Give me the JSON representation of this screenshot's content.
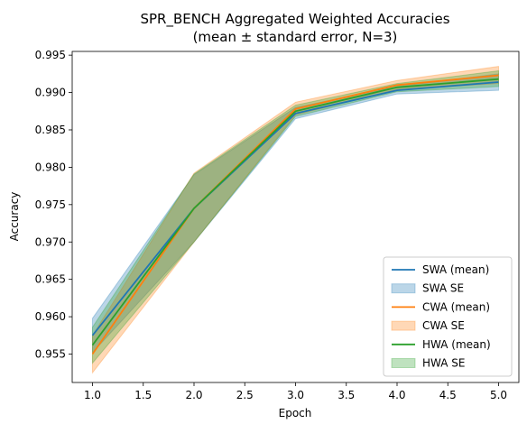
{
  "chart_data": {
    "type": "line",
    "title_line1": "SPR_BENCH Aggregated Weighted Accuracies",
    "title_line2": "(mean ± standard error, N=3)",
    "xlabel": "Epoch",
    "ylabel": "Accuracy",
    "xlim": [
      0.8,
      5.2
    ],
    "ylim": [
      0.9512,
      0.9955
    ],
    "x": [
      1,
      2,
      3,
      4,
      5
    ],
    "xticks": [
      "1.0",
      "1.5",
      "2.0",
      "2.5",
      "3.0",
      "3.5",
      "4.0",
      "4.5",
      "5.0"
    ],
    "xtick_values": [
      1.0,
      1.5,
      2.0,
      2.5,
      3.0,
      3.5,
      4.0,
      4.5,
      5.0
    ],
    "yticks": [
      "0.955",
      "0.960",
      "0.965",
      "0.970",
      "0.975",
      "0.980",
      "0.985",
      "0.990",
      "0.995"
    ],
    "ytick_values": [
      0.955,
      0.96,
      0.965,
      0.97,
      0.975,
      0.98,
      0.985,
      0.99,
      0.995
    ],
    "legend_position": "lower-right",
    "series": [
      {
        "name": "SWA (mean)",
        "band_name": "SWA SE",
        "color": "#1f77b4",
        "mean": [
          0.9575,
          0.9745,
          0.9872,
          0.9903,
          0.9914
        ],
        "lower": [
          0.9552,
          0.97,
          0.9865,
          0.9898,
          0.9903
        ],
        "upper": [
          0.9598,
          0.979,
          0.988,
          0.9908,
          0.9925
        ]
      },
      {
        "name": "CWA (mean)",
        "band_name": "CWA SE",
        "color": "#ff7f0e",
        "mean": [
          0.955,
          0.9745,
          0.9878,
          0.991,
          0.9923
        ],
        "lower": [
          0.9525,
          0.97,
          0.987,
          0.9904,
          0.9912
        ],
        "upper": [
          0.9575,
          0.9792,
          0.9887,
          0.9916,
          0.9935
        ]
      },
      {
        "name": "HWA (mean)",
        "band_name": "HWA SE",
        "color": "#2ca02c",
        "mean": [
          0.9562,
          0.9745,
          0.9875,
          0.9907,
          0.9918
        ],
        "lower": [
          0.9538,
          0.97,
          0.9868,
          0.9901,
          0.9908
        ],
        "upper": [
          0.9586,
          0.9791,
          0.9883,
          0.9912,
          0.9929
        ]
      }
    ]
  }
}
